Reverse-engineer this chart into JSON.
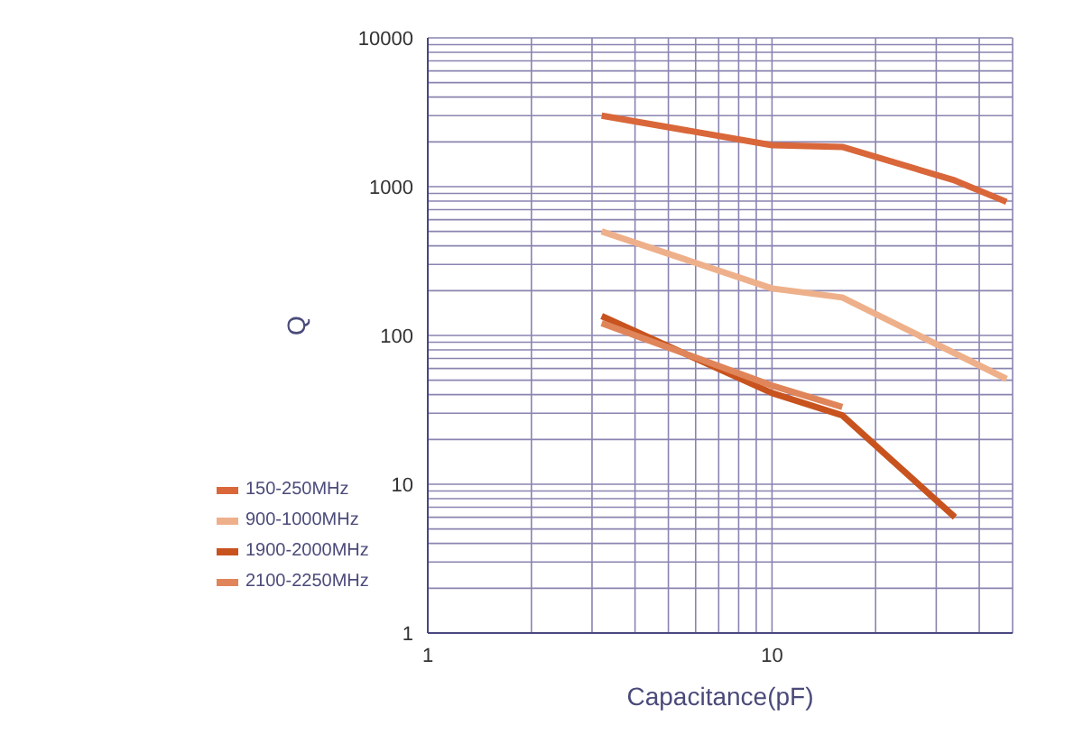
{
  "chart_data": {
    "type": "line",
    "xlabel": "Capacitance(pF)",
    "ylabel": "Q",
    "log": "xy",
    "grid": true,
    "legend": "bottom left",
    "marker": "none",
    "line_style": "solid",
    "xlim": [
      1,
      50
    ],
    "ylim": [
      1,
      10000
    ],
    "xticks": [
      1,
      {
        "value": 2,
        "label": null
      },
      {
        "value": 3,
        "label": null
      },
      {
        "value": 4,
        "label": null
      },
      {
        "value": 5,
        "label": null
      },
      {
        "value": 6,
        "label": null
      },
      {
        "value": 7,
        "label": null
      },
      {
        "value": 8,
        "label": null
      },
      {
        "value": 9,
        "label": null
      },
      10,
      {
        "value": 20,
        "label": null
      },
      {
        "value": 30,
        "label": null
      },
      {
        "value": 40,
        "label": null
      },
      {
        "value": 50,
        "label": null
      }
    ],
    "yticks": [
      1,
      {
        "value": 2,
        "label": null
      },
      {
        "value": 3,
        "label": null
      },
      {
        "value": 4,
        "label": null
      },
      {
        "value": 5,
        "label": null
      },
      {
        "value": 6,
        "label": null
      },
      {
        "value": 7,
        "label": null
      },
      {
        "value": 8,
        "label": null
      },
      {
        "value": 9,
        "label": null
      },
      10,
      {
        "value": 20,
        "label": null
      },
      {
        "value": 30,
        "label": null
      },
      {
        "value": 40,
        "label": null
      },
      {
        "value": 50,
        "label": null
      },
      {
        "value": 60,
        "label": null
      },
      {
        "value": 70,
        "label": null
      },
      {
        "value": 80,
        "label": null
      },
      {
        "value": 90,
        "label": null
      },
      100,
      {
        "value": 200,
        "label": null
      },
      {
        "value": 300,
        "label": null
      },
      {
        "value": 400,
        "label": null
      },
      {
        "value": 500,
        "label": null
      },
      {
        "value": 600,
        "label": null
      },
      {
        "value": 700,
        "label": null
      },
      {
        "value": 800,
        "label": null
      },
      {
        "value": 900,
        "label": null
      },
      1000,
      {
        "value": 2000,
        "label": null
      },
      {
        "value": 3000,
        "label": null
      },
      {
        "value": 4000,
        "label": null
      },
      {
        "value": 5000,
        "label": null
      },
      {
        "value": 6000,
        "label": null
      },
      {
        "value": 7000,
        "label": null
      },
      {
        "value": 8000,
        "label": null
      },
      {
        "value": 9000,
        "label": null
      },
      10000
    ],
    "series": [
      {
        "name": "150-250MHz",
        "color": "#d9673a",
        "x": [
          3.2,
          10,
          16,
          34,
          48
        ],
        "values": [
          3000,
          1900,
          1850,
          1100,
          790
        ]
      },
      {
        "name": "900-1000MHz",
        "color": "#eeb08a",
        "x": [
          3.2,
          10,
          16,
          48
        ],
        "values": [
          500,
          207,
          180,
          51
        ]
      },
      {
        "name": "1900-2000MHz",
        "color": "#c8531e",
        "x": [
          3.2,
          10,
          16,
          34
        ],
        "values": [
          135,
          41,
          29,
          6
        ]
      },
      {
        "name": "2100-2250MHz",
        "color": "#e0855a",
        "x": [
          3.2,
          10,
          16
        ],
        "values": [
          121,
          46,
          33
        ]
      }
    ]
  }
}
